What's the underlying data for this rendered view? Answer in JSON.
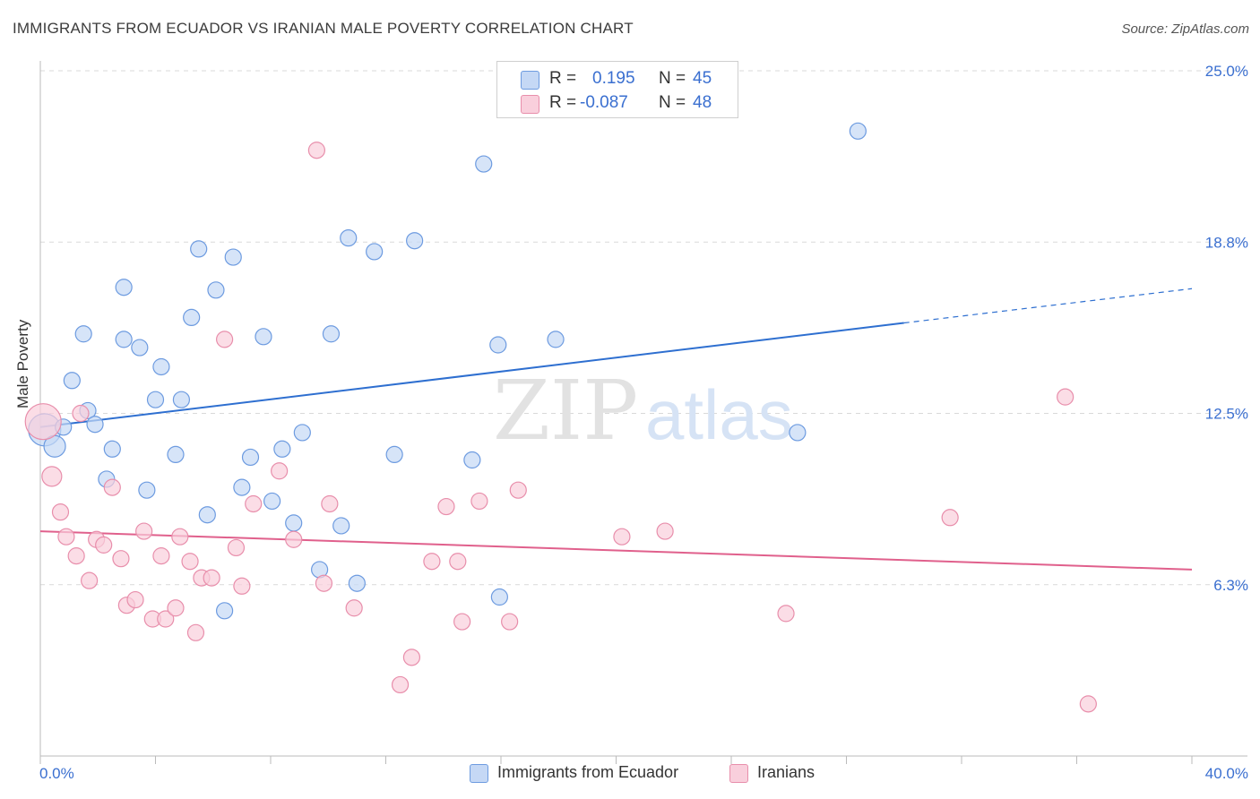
{
  "title": "IMMIGRANTS FROM ECUADOR VS IRANIAN MALE POVERTY CORRELATION CHART",
  "source": "Source: ZipAtlas.com",
  "watermark": {
    "zip": "ZIP",
    "atlas": "atlas"
  },
  "legend": {
    "series1": {
      "r_label": "R =",
      "r_value": "0.195",
      "n_label": "N =",
      "n_value": "45"
    },
    "series2": {
      "r_label": "R =",
      "r_value": "-0.087",
      "n_label": "N =",
      "n_value": "48"
    }
  },
  "colors": {
    "blue_fill": "#c5d8f5",
    "blue_stroke": "#6d9be0",
    "blue_line": "#2e6fd0",
    "pink_fill": "#f9cfdc",
    "pink_stroke": "#e88eab",
    "pink_line": "#e0608c",
    "tick_label": "#3a6fd0",
    "grid": "#d9d9d9"
  },
  "chart_data": {
    "type": "scatter",
    "xlabel": "",
    "ylabel": "Male Poverty",
    "xlim": [
      0,
      40
    ],
    "ylim": [
      0,
      25
    ],
    "x_tick_labels": [
      "0.0%",
      "40.0%"
    ],
    "y_ticks": [
      6.25,
      12.5,
      18.75,
      25.0
    ],
    "y_tick_labels": [
      "6.3%",
      "12.5%",
      "18.8%",
      "25.0%"
    ],
    "grid": "horizontal dashed",
    "legend_position": "top-center",
    "series": [
      {
        "name": "Immigrants from Ecuador",
        "color": "blue",
        "points": [
          [
            0.15,
            11.9,
            18
          ],
          [
            0.5,
            11.3,
            12
          ],
          [
            0.8,
            12.0,
            9
          ],
          [
            1.1,
            13.7,
            9
          ],
          [
            1.5,
            15.4,
            9
          ],
          [
            1.65,
            12.6,
            9
          ],
          [
            1.9,
            12.1,
            9
          ],
          [
            2.3,
            10.1,
            9
          ],
          [
            2.5,
            11.2,
            9
          ],
          [
            2.9,
            17.1,
            9
          ],
          [
            2.9,
            15.2,
            9
          ],
          [
            3.45,
            14.9,
            9
          ],
          [
            3.7,
            9.7,
            9
          ],
          [
            4.0,
            13.0,
            9
          ],
          [
            4.2,
            14.2,
            9
          ],
          [
            4.7,
            11.0,
            9
          ],
          [
            4.9,
            13.0,
            9
          ],
          [
            5.25,
            16.0,
            9
          ],
          [
            5.5,
            18.5,
            9
          ],
          [
            5.8,
            8.8,
            9
          ],
          [
            6.1,
            17.0,
            9
          ],
          [
            6.4,
            5.3,
            9
          ],
          [
            6.7,
            18.2,
            9
          ],
          [
            7.0,
            9.8,
            9
          ],
          [
            7.3,
            10.9,
            9
          ],
          [
            7.75,
            15.3,
            9
          ],
          [
            8.05,
            9.3,
            9
          ],
          [
            8.4,
            11.2,
            9
          ],
          [
            8.8,
            8.5,
            9
          ],
          [
            9.1,
            11.8,
            9
          ],
          [
            9.7,
            6.8,
            9
          ],
          [
            10.1,
            15.4,
            9
          ],
          [
            10.45,
            8.4,
            9
          ],
          [
            10.7,
            18.9,
            9
          ],
          [
            11.0,
            6.3,
            9
          ],
          [
            11.6,
            18.4,
            9
          ],
          [
            12.3,
            11.0,
            9
          ],
          [
            13.0,
            18.8,
            9
          ],
          [
            15.0,
            10.8,
            9
          ],
          [
            15.4,
            21.6,
            9
          ],
          [
            15.9,
            15.0,
            9
          ],
          [
            15.95,
            5.8,
            9
          ],
          [
            17.9,
            15.2,
            9
          ],
          [
            26.3,
            11.8,
            9
          ],
          [
            28.4,
            22.8,
            9
          ]
        ]
      },
      {
        "name": "Iranians",
        "color": "pink",
        "points": [
          [
            0.1,
            12.2,
            20
          ],
          [
            0.4,
            10.2,
            11
          ],
          [
            0.7,
            8.9,
            9
          ],
          [
            0.9,
            8.0,
            9
          ],
          [
            1.25,
            7.3,
            9
          ],
          [
            1.4,
            12.5,
            9
          ],
          [
            1.7,
            6.4,
            9
          ],
          [
            1.95,
            7.9,
            9
          ],
          [
            2.2,
            7.7,
            9
          ],
          [
            2.5,
            9.8,
            9
          ],
          [
            2.8,
            7.2,
            9
          ],
          [
            3.0,
            5.5,
            9
          ],
          [
            3.3,
            5.7,
            9
          ],
          [
            3.6,
            8.2,
            9
          ],
          [
            3.9,
            5.0,
            9
          ],
          [
            4.2,
            7.3,
            9
          ],
          [
            4.35,
            5.0,
            9
          ],
          [
            4.7,
            5.4,
            9
          ],
          [
            4.85,
            8.0,
            9
          ],
          [
            5.2,
            7.1,
            9
          ],
          [
            5.4,
            4.5,
            9
          ],
          [
            5.6,
            6.5,
            9
          ],
          [
            5.95,
            6.5,
            9
          ],
          [
            6.4,
            15.2,
            9
          ],
          [
            6.8,
            7.6,
            9
          ],
          [
            7.0,
            6.2,
            9
          ],
          [
            7.4,
            9.2,
            9
          ],
          [
            8.3,
            10.4,
            9
          ],
          [
            8.8,
            7.9,
            9
          ],
          [
            9.6,
            22.1,
            9
          ],
          [
            9.85,
            6.3,
            9
          ],
          [
            10.05,
            9.2,
            9
          ],
          [
            10.9,
            5.4,
            9
          ],
          [
            12.5,
            2.6,
            9
          ],
          [
            12.9,
            3.6,
            9
          ],
          [
            13.6,
            7.1,
            9
          ],
          [
            14.1,
            9.1,
            9
          ],
          [
            14.5,
            7.1,
            9
          ],
          [
            14.65,
            4.9,
            9
          ],
          [
            15.25,
            9.3,
            9
          ],
          [
            16.3,
            4.9,
            9
          ],
          [
            16.6,
            9.7,
            9
          ],
          [
            20.2,
            8.0,
            9
          ],
          [
            21.7,
            8.2,
            9
          ],
          [
            25.9,
            5.2,
            9
          ],
          [
            31.6,
            8.7,
            9
          ],
          [
            35.6,
            13.1,
            9
          ],
          [
            36.4,
            1.9,
            9
          ]
        ]
      }
    ],
    "trend_lines": [
      {
        "series": "Immigrants from Ecuador",
        "x0": 0,
        "y0": 12.0,
        "x1": 30,
        "y1": 15.8,
        "dashed_to_x": 40,
        "dashed_to_y": 17.05
      },
      {
        "series": "Iranians",
        "x0": 0,
        "y0": 8.2,
        "x1": 40,
        "y1": 6.8
      }
    ]
  }
}
